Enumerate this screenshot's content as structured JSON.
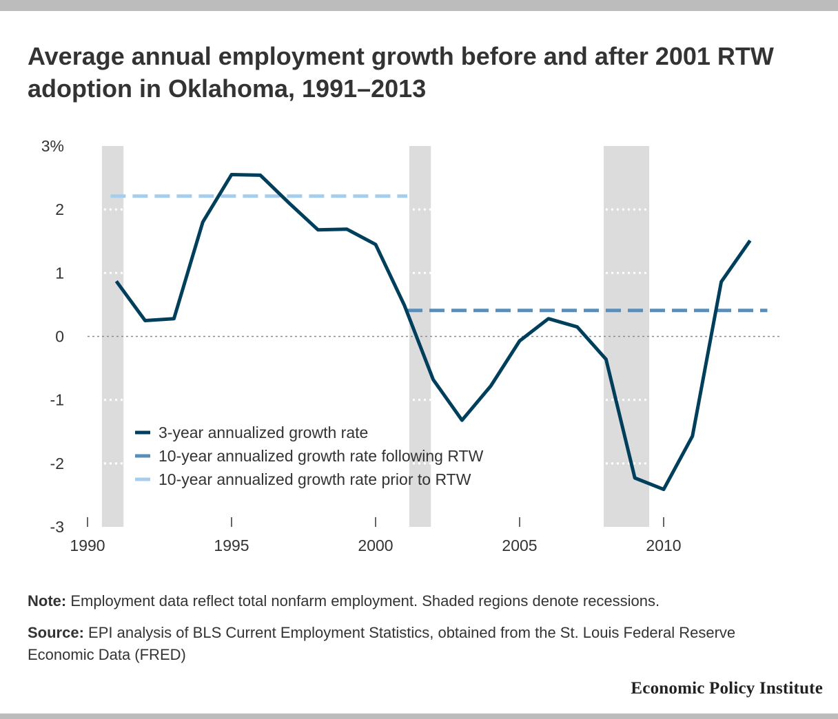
{
  "title": "Average annual employment growth before and after 2001 RTW adoption in Oklahoma, 1991–2013",
  "note": {
    "label": "Note:",
    "text": "Employment data reflect total nonfarm employment. Shaded regions denote recessions."
  },
  "source": {
    "label": "Source:",
    "text": "EPI analysis of BLS Current Employment Statistics, obtained from the St. Louis Federal Reserve Economic Data (FRED)"
  },
  "logo": "Economic Policy Institute",
  "chart_data": {
    "type": "line",
    "title": "Average annual employment growth before and after 2001 RTW adoption in Oklahoma, 1991–2013",
    "xlabel": "",
    "ylabel": "",
    "xlim": [
      1990,
      2014
    ],
    "ylim": [
      -3,
      3
    ],
    "x_ticks": [
      {
        "value": 1990,
        "label": "1990"
      },
      {
        "value": 1995,
        "label": "1995"
      },
      {
        "value": 2000,
        "label": "2000"
      },
      {
        "value": 2005,
        "label": "2005"
      },
      {
        "value": 2010,
        "label": "2010"
      }
    ],
    "y_ticks": [
      {
        "value": 3,
        "label": "3%"
      },
      {
        "value": 2,
        "label": "2"
      },
      {
        "value": 1,
        "label": "1"
      },
      {
        "value": 0,
        "label": "0"
      },
      {
        "value": -1,
        "label": "-1"
      },
      {
        "value": -2,
        "label": "-2"
      },
      {
        "value": -3,
        "label": "-3"
      }
    ],
    "grid": "horizontal dotted",
    "legend_position": "bottom-left",
    "recessions": [
      {
        "start": 1990.5,
        "end": 1991.25
      },
      {
        "start": 2001.17,
        "end": 2001.92
      },
      {
        "start": 2007.92,
        "end": 2009.5
      }
    ],
    "series": [
      {
        "name": "3-year annualized growth rate",
        "style": "solid",
        "color": "#003f5c",
        "x": [
          1991,
          1992,
          1993,
          1994,
          1995,
          1996,
          1997,
          1998,
          1999,
          2000,
          2001,
          2002,
          2003,
          2004,
          2005,
          2006,
          2007,
          2008,
          2009,
          2010,
          2011,
          2012,
          2013
        ],
        "y": [
          0.87,
          0.25,
          0.28,
          1.8,
          2.55,
          2.54,
          2.1,
          1.68,
          1.69,
          1.45,
          0.49,
          -0.68,
          -1.32,
          -0.78,
          -0.07,
          0.28,
          0.15,
          -0.36,
          -2.23,
          -2.41,
          -1.57,
          0.86,
          1.51
        ]
      },
      {
        "name": "10-year annualized growth rate following RTW",
        "style": "dashed",
        "color": "#5a8db8",
        "x": [
          2001.1,
          2013.6
        ],
        "y": [
          0.41,
          0.41
        ]
      },
      {
        "name": "10-year annualized growth rate prior to RTW",
        "style": "dashed",
        "color": "#a8cdec",
        "x": [
          1990.8,
          2001.1
        ],
        "y": [
          2.21,
          2.21
        ]
      }
    ]
  }
}
